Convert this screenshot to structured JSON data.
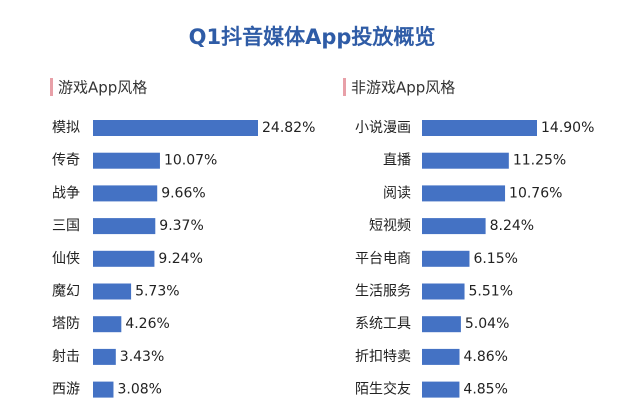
{
  "title": "Q1抖音媒体App投放概览",
  "chart_data": [
    {
      "type": "bar",
      "title": "游戏App风格",
      "color": "#4472c4",
      "categories": [
        "模拟",
        "传奇",
        "战争",
        "三国",
        "仙侠",
        "魔幻",
        "塔防",
        "射击",
        "西游"
      ],
      "values": [
        24.82,
        10.07,
        9.66,
        9.37,
        9.24,
        5.73,
        4.26,
        3.43,
        3.08
      ],
      "value_labels": [
        "24.82%",
        "10.07%",
        "9.66%",
        "9.37%",
        "9.24%",
        "5.73%",
        "4.26%",
        "3.43%",
        "3.08%"
      ]
    },
    {
      "type": "bar",
      "title": "非游戏App风格",
      "color": "#4472c4",
      "categories": [
        "小说漫画",
        "直播",
        "阅读",
        "短视频",
        "平台电商",
        "生活服务",
        "系统工具",
        "折扣特卖",
        "陌生交友"
      ],
      "values": [
        14.9,
        11.25,
        10.76,
        8.24,
        6.15,
        5.51,
        5.04,
        4.86,
        4.85
      ],
      "value_labels": [
        "14.90%",
        "11.25%",
        "10.76%",
        "8.24%",
        "6.15%",
        "5.51%",
        "5.04%",
        "4.86%",
        "4.85%"
      ]
    }
  ]
}
